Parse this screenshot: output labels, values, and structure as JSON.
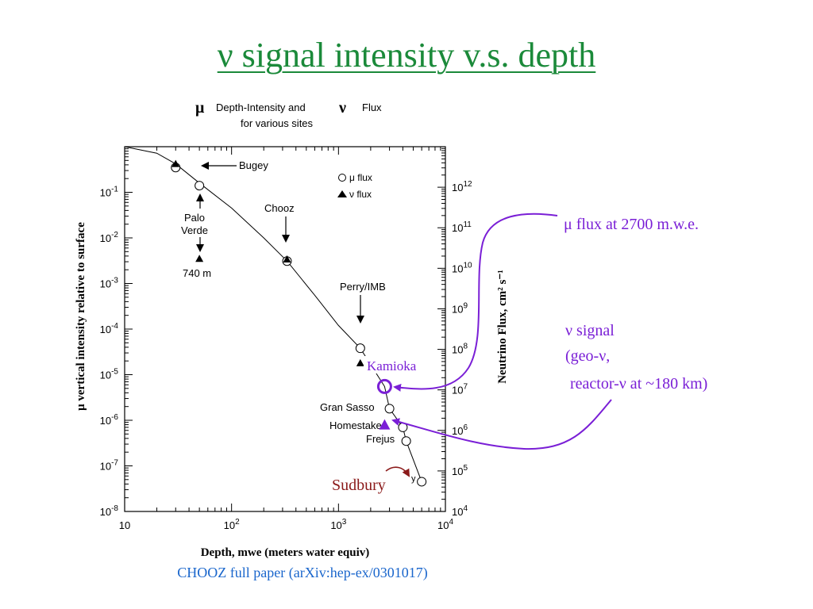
{
  "slide": {
    "title": "ν signal intensity v.s. depth",
    "citation": "CHOOZ full paper (arXiv:hep-ex/0301017)"
  },
  "colors": {
    "title": "#1b8a3a",
    "annotation": "#7a1fd6",
    "sudbury": "#8b1a1a",
    "citation": "#1a66cc"
  },
  "chart_data": {
    "type": "scatter",
    "title_line1_mu": "μ",
    "title_line1_text": "Depth-Intensity and",
    "title_line1_nu": "ν",
    "title_line1_flux": "Flux",
    "title_line2": "for various sites",
    "xlabel": "Depth, mwe (meters water equiv)",
    "ylabel_left": "μ vertical intensity relative to surface",
    "ylabel_right": "Neutrino Flux, cm² s⁻¹",
    "x_scale": "log",
    "xlim": [
      10,
      10000
    ],
    "ylim_left": [
      1e-08,
      1
    ],
    "ylim_right": [
      10000,
      10000000000000
    ],
    "x_ticks": [
      {
        "value": 10,
        "label": "10"
      },
      {
        "value": 100,
        "base": "10",
        "exp": "2"
      },
      {
        "value": 1000,
        "base": "10",
        "exp": "3"
      },
      {
        "value": 10000,
        "base": "10",
        "exp": "4"
      }
    ],
    "y_ticks_left": [
      {
        "value": 0.1,
        "base": "10",
        "exp": "-1"
      },
      {
        "value": 0.01,
        "base": "10",
        "exp": "-2"
      },
      {
        "value": 0.001,
        "base": "10",
        "exp": "-3"
      },
      {
        "value": 0.0001,
        "base": "10",
        "exp": "-4"
      },
      {
        "value": 1e-05,
        "base": "10",
        "exp": "-5"
      },
      {
        "value": 1e-06,
        "base": "10",
        "exp": "-6"
      },
      {
        "value": 1e-07,
        "base": "10",
        "exp": "-7"
      },
      {
        "value": 1e-08,
        "base": "10",
        "exp": "-8"
      }
    ],
    "y_ticks_right": [
      {
        "value": 1000000000000,
        "base": "10",
        "exp": "12"
      },
      {
        "value": 100000000000,
        "base": "10",
        "exp": "11"
      },
      {
        "value": 10000000000,
        "base": "10",
        "exp": "10"
      },
      {
        "value": 1000000000,
        "base": "10",
        "exp": "9"
      },
      {
        "value": 100000000,
        "base": "10",
        "exp": "8"
      },
      {
        "value": 10000000,
        "base": "10",
        "exp": "7"
      },
      {
        "value": 1000000,
        "base": "10",
        "exp": "6"
      },
      {
        "value": 100000,
        "base": "10",
        "exp": "5"
      },
      {
        "value": 10000,
        "base": "10",
        "exp": "4"
      }
    ],
    "legend": {
      "placement": "top-right",
      "items": [
        {
          "symbol": "circle",
          "label": "μ flux"
        },
        {
          "symbol": "triangle",
          "label": "ν flux"
        }
      ]
    },
    "curve": [
      [
        10,
        1.0
      ],
      [
        20,
        0.72
      ],
      [
        30,
        0.42
      ],
      [
        50,
        0.16
      ],
      [
        100,
        0.045
      ],
      [
        200,
        0.01
      ],
      [
        330,
        0.0031
      ],
      [
        600,
        0.00055
      ],
      [
        1000,
        0.00012
      ],
      [
        1600,
        3.8e-05
      ],
      [
        2700,
        5.5e-06
      ],
      [
        3000,
        1.8e-06
      ],
      [
        4000,
        7e-07
      ],
      [
        4300,
        3.5e-07
      ],
      [
        6000,
        4.5e-08
      ]
    ],
    "series": [
      {
        "name": "μ flux",
        "marker": "circle",
        "points": [
          {
            "x": 30,
            "y": 0.35
          },
          {
            "x": 50,
            "y": 0.14
          },
          {
            "x": 330,
            "y": 0.0031
          },
          {
            "x": 1600,
            "y": 3.8e-05
          },
          {
            "x": 3000,
            "y": 1.8e-06
          },
          {
            "x": 4000,
            "y": 7e-07
          },
          {
            "x": 4300,
            "y": 3.5e-07
          },
          {
            "x": 6000,
            "y": 4.5e-08
          }
        ]
      },
      {
        "name": "ν flux",
        "marker": "triangle",
        "points": [
          {
            "x": 30,
            "y": 0.42
          },
          {
            "x": 50,
            "y": 0.0035
          },
          {
            "x": 330,
            "y": 0.0034
          },
          {
            "x": 1600,
            "y": 1.8e-05
          }
        ]
      }
    ],
    "site_labels": [
      {
        "id": "bugey",
        "text": "Bugey"
      },
      {
        "id": "palo-verde",
        "text": "Palo"
      },
      {
        "id": "palo-verde-2",
        "text": "Verde"
      },
      {
        "id": "740m",
        "text": "740 m"
      },
      {
        "id": "chooz",
        "text": "Chooz"
      },
      {
        "id": "perry",
        "text": "Perry/IMB"
      },
      {
        "id": "gran-sasso",
        "text": "Gran Sasso"
      },
      {
        "id": "homestake",
        "text": "Homestake"
      },
      {
        "id": "frejus",
        "text": "Frejus"
      },
      {
        "id": "y",
        "text": "y"
      }
    ],
    "annotations": {
      "kamioka": "Kamioka",
      "sudbury": "Sudbury",
      "mu_flux_label": "μ flux at 2700 m.w.e.",
      "nu_signal_line1": "ν signal",
      "nu_signal_line2": "(geo-ν,",
      "nu_signal_line3": "reactor-ν at ~180 km)",
      "kamioka_mu": {
        "x": 2700,
        "y": 5.5e-06
      },
      "kamioka_nu": {
        "x": 2700,
        "y": 8e-07
      }
    }
  }
}
